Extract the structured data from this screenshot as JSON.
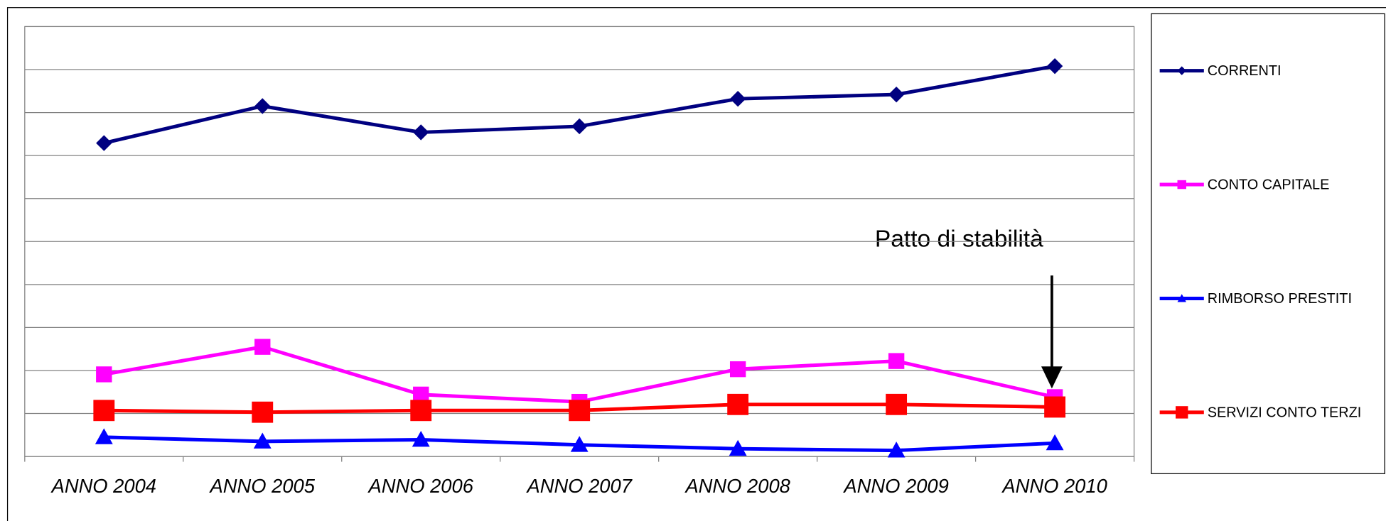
{
  "chart_data": {
    "type": "line",
    "categories": [
      "ANNO 2004",
      "ANNO 2005",
      "ANNO 2006",
      "ANNO 2007",
      "ANNO 2008",
      "ANNO 2009",
      "ANNO 2010"
    ],
    "series": [
      {
        "name": "CORRENTI",
        "color": "#000080",
        "marker": "diamond",
        "values": [
          7.29,
          8.15,
          7.54,
          7.68,
          8.32,
          8.42,
          9.08
        ]
      },
      {
        "name": "CONTO CAPITALE",
        "color": "#ff00ff",
        "marker": "square",
        "values": [
          1.91,
          2.55,
          1.44,
          1.27,
          2.03,
          2.22,
          1.38
        ]
      },
      {
        "name": "RIMBORSO PRESTITI",
        "color": "#0000ff",
        "marker": "triangle",
        "values": [
          0.45,
          0.35,
          0.39,
          0.27,
          0.18,
          0.14,
          0.31
        ]
      },
      {
        "name": "SERVIZI CONTO TERZI",
        "color": "#ff0000",
        "marker": "square",
        "values": [
          1.07,
          1.03,
          1.07,
          1.07,
          1.21,
          1.21,
          1.15
        ]
      }
    ],
    "ylim": [
      0,
      10
    ],
    "yticks": [
      0,
      1,
      2,
      3,
      4,
      5,
      6,
      7,
      8,
      9,
      10
    ],
    "grid": true,
    "legend": "right",
    "annotation": "Patto di stabilità"
  }
}
